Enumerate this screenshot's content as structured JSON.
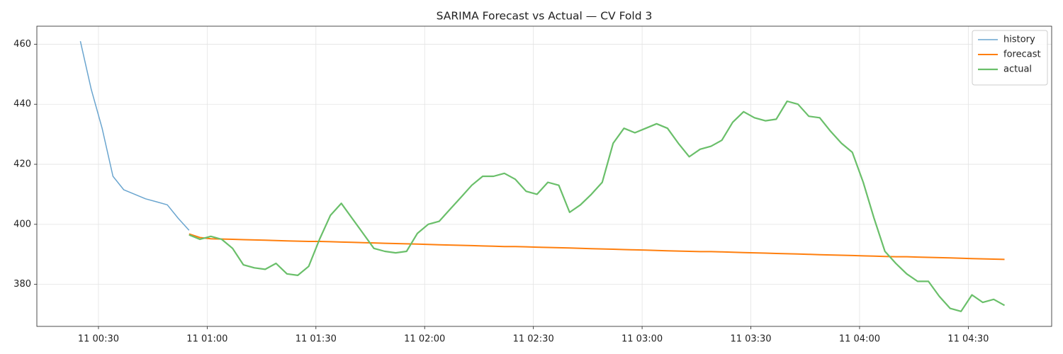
{
  "chart_data": {
    "type": "line",
    "title": "SARIMA Forecast vs Actual — CV Fold 3",
    "x": [
      "11 00:25",
      "11 00:28",
      "11 00:31",
      "11 00:34",
      "11 00:37",
      "11 00:40",
      "11 00:43",
      "11 00:46",
      "11 00:49",
      "11 00:52",
      "11 00:55",
      "11 00:58",
      "11 01:01",
      "11 01:04",
      "11 01:07",
      "11 01:10",
      "11 01:13",
      "11 01:16",
      "11 01:19",
      "11 01:22",
      "11 01:25",
      "11 01:28",
      "11 01:31",
      "11 01:34",
      "11 01:37",
      "11 01:40",
      "11 01:43",
      "11 01:46",
      "11 01:49",
      "11 01:52",
      "11 01:55",
      "11 01:58",
      "11 02:01",
      "11 02:04",
      "11 02:07",
      "11 02:10",
      "11 02:13",
      "11 02:16",
      "11 02:19",
      "11 02:22",
      "11 02:25",
      "11 02:28",
      "11 02:31",
      "11 02:34",
      "11 02:37",
      "11 02:40",
      "11 02:43",
      "11 02:46",
      "11 02:49",
      "11 02:52",
      "11 02:55",
      "11 02:58",
      "11 03:01",
      "11 03:04",
      "11 03:07",
      "11 03:10",
      "11 03:13",
      "11 03:16",
      "11 03:19",
      "11 03:22",
      "11 03:25",
      "11 03:28",
      "11 03:31",
      "11 03:34",
      "11 03:37",
      "11 03:40",
      "11 03:43",
      "11 03:46",
      "11 03:49",
      "11 03:52",
      "11 03:55",
      "11 03:58",
      "11 04:01",
      "11 04:04",
      "11 04:07",
      "11 04:10",
      "11 04:13",
      "11 04:16",
      "11 04:19",
      "11 04:22",
      "11 04:25",
      "11 04:28",
      "11 04:31",
      "11 04:34",
      "11 04:37",
      "11 04:40"
    ],
    "series": [
      {
        "name": "history",
        "color": "#6aa5cf",
        "width": 1.5,
        "values": [
          461,
          445,
          432,
          416,
          411.5,
          410,
          408.5,
          407.5,
          406.5,
          402,
          398,
          null,
          null,
          null,
          null,
          null,
          null,
          null,
          null,
          null,
          null,
          null,
          null,
          null,
          null,
          null,
          null,
          null,
          null,
          null,
          null,
          null,
          null,
          null,
          null,
          null,
          null,
          null,
          null,
          null,
          null,
          null,
          null,
          null,
          null,
          null,
          null,
          null,
          null,
          null,
          null,
          null,
          null,
          null,
          null,
          null,
          null,
          null,
          null,
          null,
          null,
          null,
          null,
          null,
          null,
          null,
          null,
          null,
          null,
          null,
          null,
          null,
          null,
          null,
          null,
          null,
          null,
          null,
          null,
          null,
          null,
          null,
          null,
          null,
          null,
          null
        ]
      },
      {
        "name": "forecast",
        "color": "#ff7f0e",
        "width": 2,
        "values": [
          null,
          null,
          null,
          null,
          null,
          null,
          null,
          null,
          null,
          null,
          396.8,
          395.6,
          395.2,
          395.1,
          395.0,
          394.9,
          394.8,
          394.7,
          394.6,
          394.5,
          394.4,
          394.3,
          394.3,
          394.2,
          394.1,
          394.0,
          393.9,
          393.8,
          393.7,
          393.6,
          393.5,
          393.4,
          393.3,
          393.2,
          393.1,
          393.0,
          392.9,
          392.8,
          392.7,
          392.6,
          392.6,
          392.5,
          392.4,
          392.3,
          392.2,
          392.1,
          392.0,
          391.9,
          391.8,
          391.7,
          391.6,
          391.5,
          391.4,
          391.3,
          391.2,
          391.1,
          391.0,
          390.9,
          390.9,
          390.8,
          390.7,
          390.6,
          390.5,
          390.4,
          390.3,
          390.2,
          390.1,
          390.0,
          389.9,
          389.8,
          389.7,
          389.6,
          389.5,
          389.4,
          389.3,
          389.2,
          389.2,
          389.1,
          389.0,
          388.9,
          388.8,
          388.7,
          388.6,
          388.5,
          388.4,
          388.3
        ]
      },
      {
        "name": "actual",
        "color": "#6abf6a",
        "width": 2.2,
        "values": [
          null,
          null,
          null,
          null,
          null,
          null,
          null,
          null,
          null,
          null,
          396.5,
          395,
          396,
          395,
          392,
          386.5,
          385.5,
          385,
          387,
          383.5,
          383,
          386,
          395,
          403,
          407,
          402,
          397,
          392,
          391,
          390.5,
          391,
          397,
          400,
          401,
          405,
          409,
          413,
          416,
          416,
          417,
          415,
          411,
          410,
          414,
          413,
          404,
          406.5,
          410,
          414,
          427,
          432,
          430.5,
          432,
          433.5,
          432,
          427,
          422.5,
          425,
          426,
          428,
          434,
          437.5,
          435.5,
          434.5,
          435,
          441,
          440,
          436,
          435.5,
          431,
          427,
          424,
          414,
          402,
          391,
          387,
          383.5,
          381,
          381,
          376,
          372,
          371,
          376.5,
          374,
          375,
          373
        ]
      }
    ],
    "xlim": [
      "11 00:13",
      "11 04:53"
    ],
    "xticks": [
      "11 00:30",
      "11 01:00",
      "11 01:30",
      "11 02:00",
      "11 02:30",
      "11 03:00",
      "11 03:30",
      "11 04:00",
      "11 04:30"
    ],
    "ylim": [
      366,
      466
    ],
    "yticks": [
      380,
      400,
      420,
      440,
      460
    ],
    "grid": true,
    "legend": "upper right"
  }
}
